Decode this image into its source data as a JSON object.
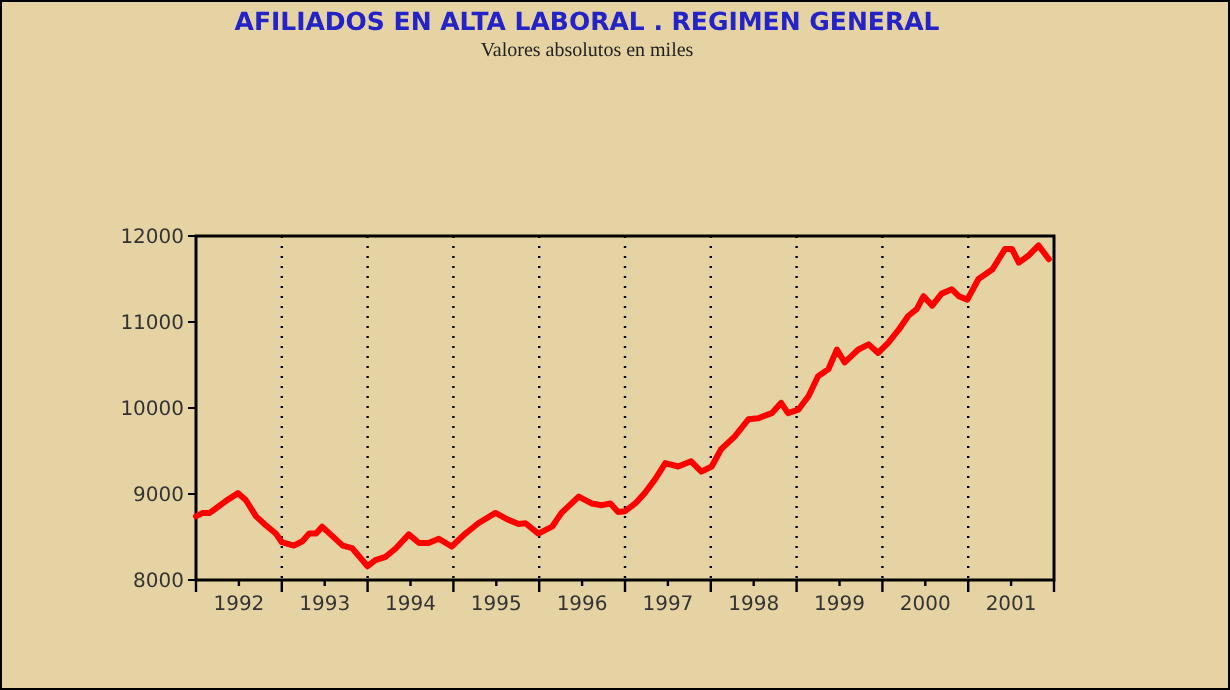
{
  "chart_data": {
    "type": "line",
    "title": "AFILIADOS  EN ALTA LABORAL . REGIMEN GENERAL",
    "subtitle": "Valores absolutos  en  miles",
    "x": [
      1992.0,
      1992.08,
      1992.16,
      1992.27,
      1992.35,
      1992.49,
      1992.58,
      1992.7,
      1992.81,
      1992.93,
      1993.0,
      1993.14,
      1993.24,
      1993.32,
      1993.4,
      1993.47,
      1993.59,
      1993.71,
      1993.82,
      1994.0,
      1994.09,
      1994.21,
      1994.33,
      1994.48,
      1994.6,
      1994.71,
      1994.83,
      1994.98,
      1995.14,
      1995.29,
      1995.49,
      1995.64,
      1995.76,
      1995.84,
      1995.99,
      1996.15,
      1996.26,
      1996.46,
      1996.61,
      1996.73,
      1996.83,
      1996.92,
      1997.0,
      1997.12,
      1997.23,
      1997.35,
      1997.47,
      1997.62,
      1997.77,
      1997.89,
      1998.01,
      1998.12,
      1998.28,
      1998.44,
      1998.55,
      1998.71,
      1998.82,
      1998.9,
      1999.02,
      1999.14,
      1999.25,
      1999.37,
      1999.47,
      1999.56,
      1999.72,
      1999.84,
      1999.95,
      2000.07,
      2000.19,
      2000.3,
      2000.4,
      2000.48,
      2000.58,
      2000.69,
      2000.81,
      2000.89,
      2000.99,
      2001.12,
      2001.28,
      2001.43,
      2001.51,
      2001.59,
      2001.7,
      2001.82,
      2001.94
    ],
    "series": [
      {
        "color": "#ff0000",
        "values": [
          8740,
          8780,
          8780,
          8860,
          8920,
          9010,
          8930,
          8740,
          8640,
          8540,
          8440,
          8400,
          8450,
          8540,
          8540,
          8620,
          8510,
          8400,
          8370,
          8160,
          8230,
          8270,
          8370,
          8530,
          8430,
          8430,
          8480,
          8390,
          8540,
          8660,
          8780,
          8700,
          8650,
          8660,
          8540,
          8620,
          8780,
          8970,
          8890,
          8870,
          8890,
          8790,
          8800,
          8890,
          9010,
          9170,
          9360,
          9320,
          9380,
          9260,
          9320,
          9520,
          9670,
          9870,
          9880,
          9940,
          10060,
          9940,
          9980,
          10140,
          10370,
          10450,
          10680,
          10530,
          10680,
          10740,
          10640,
          10760,
          10910,
          11070,
          11150,
          11300,
          11190,
          11330,
          11380,
          11300,
          11260,
          11500,
          11610,
          11850,
          11850,
          11690,
          11770,
          11890,
          11730
        ]
      }
    ],
    "xlim": [
      1992,
      2002
    ],
    "xticks": [
      {
        "value": 1992,
        "label": null
      },
      {
        "value": 1992.5,
        "label": "1992"
      },
      {
        "value": 1993,
        "label": null
      },
      {
        "value": 1993.5,
        "label": "1993"
      },
      {
        "value": 1994,
        "label": null
      },
      {
        "value": 1994.5,
        "label": "1994"
      },
      {
        "value": 1995,
        "label": null
      },
      {
        "value": 1995.5,
        "label": "1995"
      },
      {
        "value": 1996,
        "label": null
      },
      {
        "value": 1996.5,
        "label": "1996"
      },
      {
        "value": 1997,
        "label": null
      },
      {
        "value": 1997.5,
        "label": "1997"
      },
      {
        "value": 1998,
        "label": null
      },
      {
        "value": 1998.5,
        "label": "1998"
      },
      {
        "value": 1999,
        "label": null
      },
      {
        "value": 1999.5,
        "label": "1999"
      },
      {
        "value": 2000,
        "label": null
      },
      {
        "value": 2000.5,
        "label": "2000"
      },
      {
        "value": 2001,
        "label": null
      },
      {
        "value": 2001.5,
        "label": "2001"
      },
      {
        "value": 2002,
        "label": null
      }
    ],
    "ylim": [
      8000,
      12000
    ],
    "yticks": [
      8000,
      9000,
      10000,
      11000,
      12000
    ],
    "ref_lines": [
      {
        "axis": "x",
        "value": 1993,
        "line_style": "dotted"
      },
      {
        "axis": "x",
        "value": 1994,
        "line_style": "dotted"
      },
      {
        "axis": "x",
        "value": 1995,
        "line_style": "dotted"
      },
      {
        "axis": "x",
        "value": 1996,
        "line_style": "dotted"
      },
      {
        "axis": "x",
        "value": 1997,
        "line_style": "dotted"
      },
      {
        "axis": "x",
        "value": 1998,
        "line_style": "dotted"
      },
      {
        "axis": "x",
        "value": 1999,
        "line_style": "dotted"
      },
      {
        "axis": "x",
        "value": 2000,
        "line_style": "dotted"
      },
      {
        "axis": "x",
        "value": 2001,
        "line_style": "dotted"
      }
    ],
    "grid": false,
    "marker": "none",
    "line_style": "solid"
  }
}
